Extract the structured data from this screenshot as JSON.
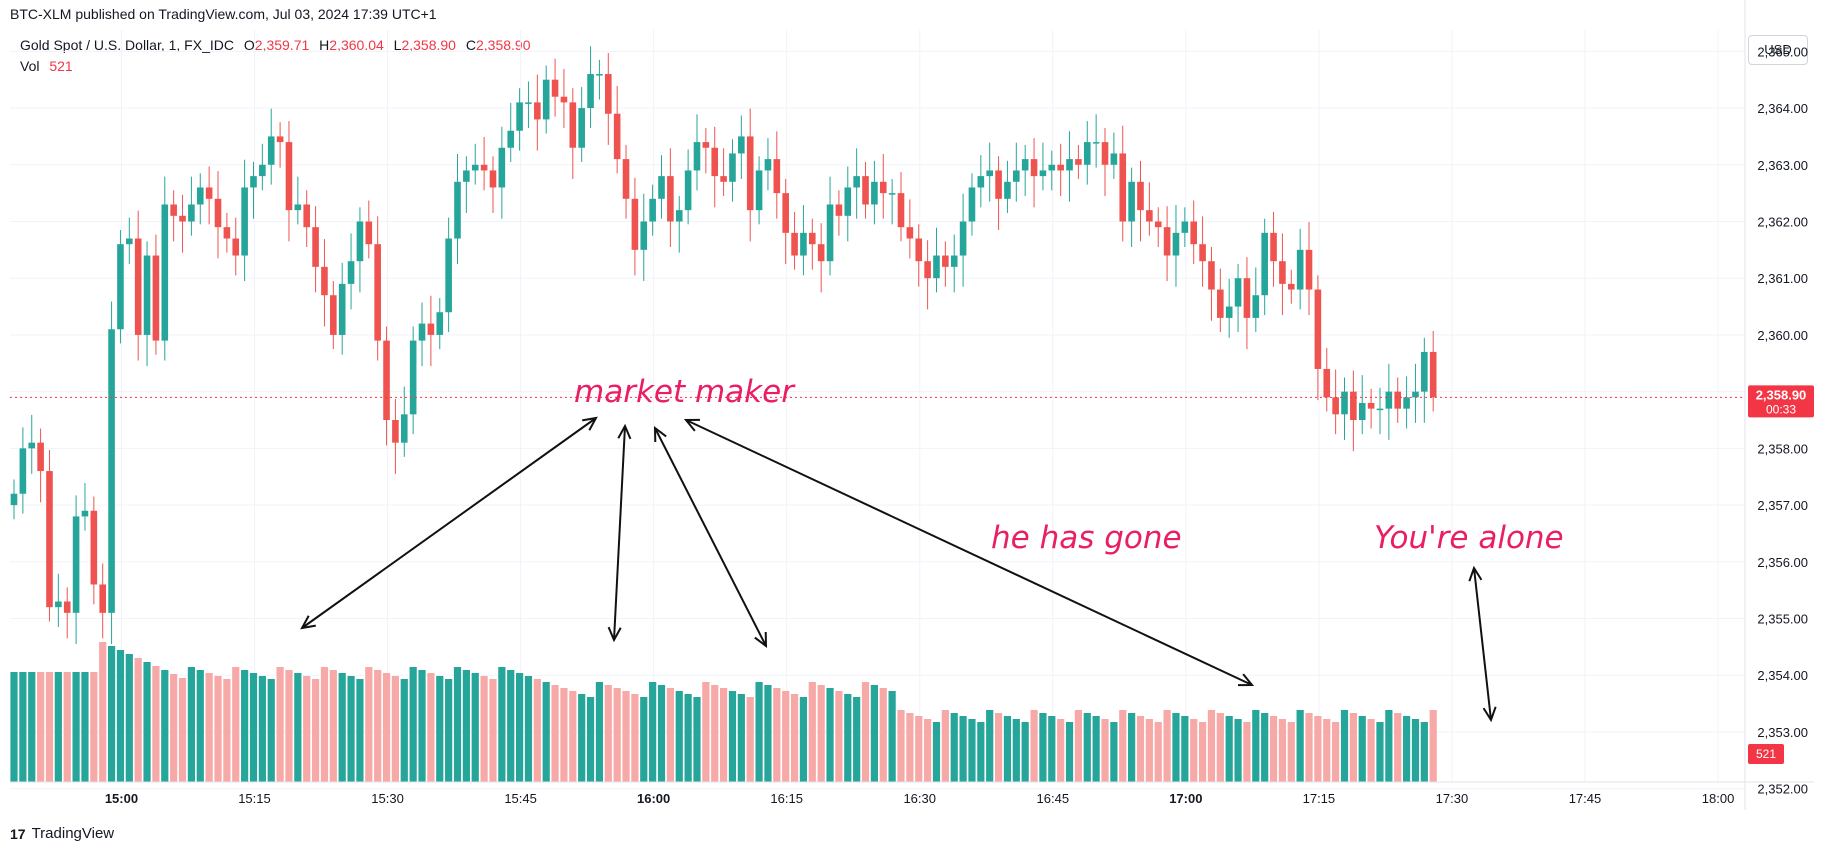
{
  "header": {
    "publisher_line": "BTC-XLM published on TradingView.com, Jul 03, 2024 17:39 UTC+1",
    "symbol": "Gold Spot / U.S. Dollar, 1, FX_IDC",
    "o_label": "O",
    "o_value": "2,359.71",
    "h_label": "H",
    "h_value": "2,360.04",
    "l_label": "L",
    "l_value": "2,358.90",
    "c_label": "C",
    "c_value": "2,358.90",
    "vol_label": "Vol",
    "vol_value": "521"
  },
  "currency_button": "USD",
  "footer": {
    "brand": "TradingView",
    "logo_glyph": "17"
  },
  "price_badge": {
    "price": "2,358.90",
    "countdown": "00:33"
  },
  "volume_badge": "521",
  "annotations": {
    "market_maker": "market maker",
    "he_has_gone": "he has gone",
    "youre_alone": "You're alone"
  },
  "colors": {
    "up": "#26a69a",
    "down": "#ef5350",
    "vol_up": "#26a69a",
    "vol_down": "#f7a9a7",
    "annotation": "#e91e63"
  },
  "chart_data": {
    "type": "candlestick",
    "symbol": "Gold Spot / U.S. Dollar",
    "interval": "1",
    "y_ticks": [
      "2,352.00",
      "2,353.00",
      "2,354.00",
      "2,355.00",
      "2,356.00",
      "2,357.00",
      "2,358.00",
      "2,359.00",
      "2,360.00",
      "2,361.00",
      "2,362.00",
      "2,363.00",
      "2,364.00",
      "2,365.00"
    ],
    "x_ticks": [
      "15:00",
      "15:15",
      "15:30",
      "15:45",
      "16:00",
      "16:15",
      "16:30",
      "16:45",
      "17:00",
      "17:15",
      "17:30",
      "17:45",
      "18:00"
    ],
    "ylim": [
      2351.8,
      2365.2
    ],
    "last_price": 2358.9,
    "grid": true,
    "candles_close": [
      2357.2,
      2358.0,
      2358.1,
      2357.6,
      2355.2,
      2355.3,
      2355.1,
      2356.8,
      2356.9,
      2355.6,
      2355.1,
      2360.1,
      2361.6,
      2361.7,
      2360.0,
      2361.4,
      2359.9,
      2362.3,
      2362.1,
      2362.0,
      2362.3,
      2362.6,
      2362.4,
      2361.9,
      2361.7,
      2361.4,
      2362.6,
      2362.8,
      2363.0,
      2363.5,
      2363.4,
      2362.2,
      2362.3,
      2361.9,
      2361.2,
      2360.7,
      2360.0,
      2360.9,
      2361.3,
      2362.0,
      2361.6,
      2359.9,
      2358.5,
      2358.1,
      2358.6,
      2359.9,
      2360.2,
      2360.0,
      2360.4,
      2361.7,
      2362.7,
      2362.9,
      2363.0,
      2362.9,
      2362.6,
      2363.3,
      2363.6,
      2364.1,
      2364.1,
      2363.8,
      2364.5,
      2364.2,
      2364.1,
      2363.3,
      2364.0,
      2364.6,
      2364.6,
      2363.9,
      2363.1,
      2362.4,
      2361.5,
      2362.0,
      2362.4,
      2362.8,
      2362.0,
      2362.2,
      2362.9,
      2363.4,
      2363.3,
      2362.8,
      2362.7,
      2363.2,
      2363.5,
      2362.2,
      2362.9,
      2363.1,
      2362.5,
      2361.8,
      2361.4,
      2361.8,
      2361.6,
      2361.3,
      2362.3,
      2362.1,
      2362.6,
      2362.8,
      2362.3,
      2362.7,
      2362.5,
      2362.5,
      2361.9,
      2361.7,
      2361.3,
      2361.0,
      2361.4,
      2361.2,
      2361.4,
      2362.0,
      2362.6,
      2362.8,
      2362.9,
      2362.4,
      2362.7,
      2362.9,
      2363.1,
      2362.8,
      2362.9,
      2363.0,
      2362.9,
      2363.1,
      2363.0,
      2363.4,
      2363.4,
      2363.0,
      2363.2,
      2362.0,
      2362.7,
      2362.2,
      2362.0,
      2361.9,
      2361.4,
      2361.8,
      2362.0,
      2361.6,
      2361.3,
      2360.8,
      2360.3,
      2360.5,
      2361.0,
      2360.3,
      2360.7,
      2361.8,
      2361.3,
      2360.9,
      2360.8,
      2361.5,
      2360.8,
      2359.4,
      2358.9,
      2358.6,
      2359.0,
      2358.5,
      2358.8,
      2358.7,
      2358.7,
      2359.0,
      2358.7,
      2358.9,
      2359.0,
      2359.7,
      2358.9
    ]
  }
}
